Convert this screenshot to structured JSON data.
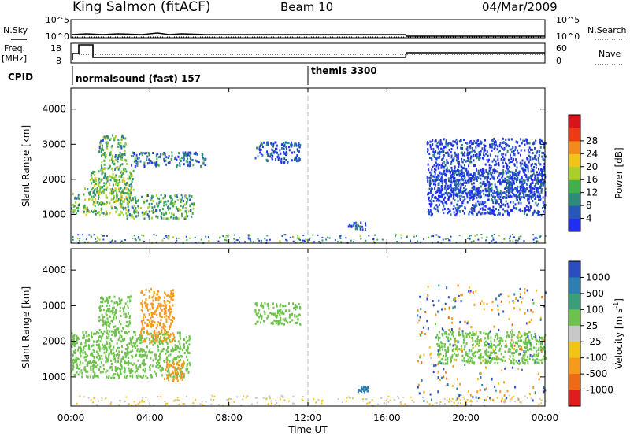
{
  "header": {
    "station": "King Salmon (fitACF)",
    "beam": "Beam 10",
    "date": "04/Mar/2009"
  },
  "top_panels": {
    "nsky_label": "N.Sky",
    "nsearch_label": "N.Search",
    "nsky_ticks": [
      "10^5",
      "10^0"
    ],
    "nsearch_ticks": [
      "10^5",
      "10^0"
    ],
    "freq_label_lines": [
      "Freq.",
      "[MHz]"
    ],
    "freq_ticks": [
      "18",
      "8"
    ],
    "nave_label": "Nave",
    "nave_ticks": [
      "60",
      "0"
    ],
    "cpid_label": "CPID",
    "cpid_segments": [
      {
        "label": "normalsound (fast) 157",
        "start_hour": 0
      },
      {
        "label": "themis 3300",
        "start_hour": 12
      }
    ]
  },
  "time_axis": {
    "label": "Time UT",
    "ticks": [
      "00:00",
      "04:00",
      "08:00",
      "12:00",
      "16:00",
      "20:00",
      "00:00"
    ],
    "tick_hours": [
      0,
      4,
      8,
      12,
      16,
      20,
      24
    ],
    "range_hours": [
      0,
      24
    ]
  },
  "range_axis": {
    "label": "Slant Range [km]",
    "ticks": [
      "1000",
      "2000",
      "3000",
      "4000"
    ],
    "tick_values": [
      1000,
      2000,
      3000,
      4000
    ],
    "range_km": [
      180,
      4600
    ]
  },
  "power_bar": {
    "label": "Power [dB]",
    "ticks": [
      "4",
      "8",
      "12",
      "16",
      "20",
      "24",
      "28"
    ],
    "colors": [
      "#1f2ef0",
      "#2757b8",
      "#2e8a7a",
      "#42b04a",
      "#a8cf2a",
      "#f2c418",
      "#f28a1c",
      "#ee3a14",
      "#d8141a"
    ]
  },
  "velocity_bar": {
    "label": "Velocity [m s-1]",
    "label_main": "Velocity [m s",
    "label_sup": "-1",
    "label_end": "]",
    "ticks": [
      "1000",
      "500",
      "100",
      "25",
      "-25",
      "-100",
      "-500",
      "-1000"
    ],
    "colors": [
      "#2a4ec0",
      "#2c7fb0",
      "#3a9e78",
      "#6cc24a",
      "#c8c8c8",
      "#f2c41a",
      "#f59a1a",
      "#ef6a14",
      "#e01c1c"
    ]
  },
  "chart_data": [
    {
      "type": "heatmap",
      "title": "Power",
      "xlabel": "Time UT",
      "ylabel": "Slant Range [km]",
      "xlim": [
        0,
        24
      ],
      "ylim": [
        180,
        4600
      ],
      "colorbar": {
        "label": "Power [dB]",
        "min": 3,
        "max": 30
      },
      "regions": [
        {
          "t": [
            0.0,
            0.4
          ],
          "r": [
            1000,
            1700
          ],
          "level": 12
        },
        {
          "t": [
            0.6,
            3.0
          ],
          "r": [
            1000,
            1800
          ],
          "level": 14
        },
        {
          "t": [
            0.9,
            3.2
          ],
          "r": [
            1600,
            2300
          ],
          "level": 13
        },
        {
          "t": [
            1.4,
            2.8
          ],
          "r": [
            2300,
            3300
          ],
          "level": 12
        },
        {
          "t": [
            2.8,
            6.2
          ],
          "r": [
            900,
            1600
          ],
          "level": 12
        },
        {
          "t": [
            3.0,
            6.8
          ],
          "r": [
            2400,
            2800
          ],
          "level": 7
        },
        {
          "t": [
            9.3,
            11.6
          ],
          "r": [
            2500,
            3100
          ],
          "level": 6
        },
        {
          "t": [
            14.0,
            15.0
          ],
          "r": [
            600,
            800
          ],
          "level": 6
        },
        {
          "t": [
            18.5,
            24.0
          ],
          "r": [
            1500,
            2300
          ],
          "level": 6
        },
        {
          "t": [
            18.0,
            24.0
          ],
          "r": [
            1000,
            3200
          ],
          "level": 4
        }
      ]
    },
    {
      "type": "heatmap",
      "title": "Velocity",
      "xlabel": "Time UT",
      "ylabel": "Slant Range [km]",
      "xlim": [
        0,
        24
      ],
      "ylim": [
        180,
        4600
      ],
      "colorbar": {
        "label": "Velocity [m s-1]",
        "min": -1000,
        "max": 1000
      },
      "regions": [
        {
          "t": [
            0.0,
            6.0
          ],
          "r": [
            1000,
            2300
          ],
          "velocity": 0
        },
        {
          "t": [
            1.4,
            3.0
          ],
          "r": [
            2300,
            3300
          ],
          "velocity": 0
        },
        {
          "t": [
            4.7,
            5.7
          ],
          "r": [
            900,
            1500
          ],
          "velocity": -600
        },
        {
          "t": [
            3.5,
            5.2
          ],
          "r": [
            2000,
            3500
          ],
          "velocity": -800
        },
        {
          "t": [
            9.3,
            11.6
          ],
          "r": [
            2500,
            3100
          ],
          "velocity": 0
        },
        {
          "t": [
            14.5,
            15.0
          ],
          "r": [
            600,
            750
          ],
          "velocity": 150
        },
        {
          "t": [
            18.5,
            24.0
          ],
          "r": [
            1400,
            2300
          ],
          "velocity": 0
        }
      ]
    }
  ]
}
